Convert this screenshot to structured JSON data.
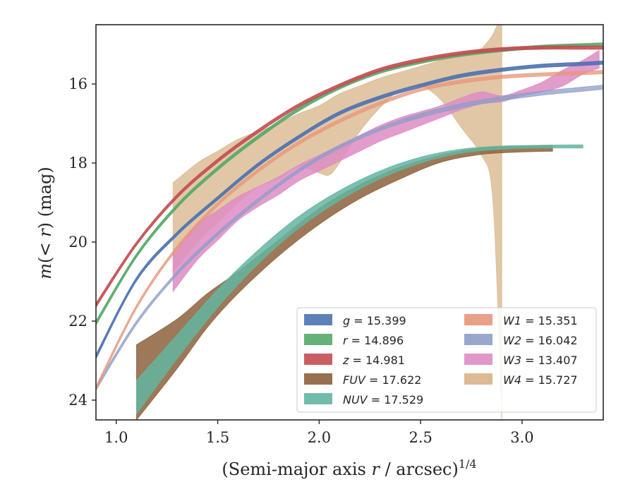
{
  "chart_data": {
    "type": "area",
    "xlabel": "(Semi-major axis r / arcsec)^{1/4}",
    "ylabel": "m(<r) (mag)",
    "xlim": [
      0.9,
      3.4
    ],
    "ylim": [
      24.5,
      14.5
    ],
    "y_inverted": true,
    "grid": false,
    "legend_position": "lower-right",
    "x_ticks": [
      "1.0",
      "1.5",
      "2.0",
      "2.5",
      "3.0"
    ],
    "y_ticks": [
      "16",
      "18",
      "20",
      "22",
      "24"
    ],
    "series": [
      {
        "name": "g = 15.399",
        "color": "#4c72b0",
        "type": "line",
        "upper": [
          [
            0.9,
            22.85
          ],
          [
            1.1,
            20.9
          ],
          [
            1.3,
            19.75
          ],
          [
            1.5,
            18.85
          ],
          [
            1.7,
            18.0
          ],
          [
            1.9,
            17.3
          ],
          [
            2.1,
            16.7
          ],
          [
            2.3,
            16.3
          ],
          [
            2.5,
            16.0
          ],
          [
            2.7,
            15.75
          ],
          [
            2.9,
            15.6
          ],
          [
            3.1,
            15.5
          ],
          [
            3.3,
            15.45
          ],
          [
            3.4,
            15.42
          ]
        ],
        "lower": [
          [
            0.9,
            22.95
          ],
          [
            1.1,
            20.98
          ],
          [
            1.3,
            19.83
          ],
          [
            1.5,
            18.93
          ],
          [
            1.7,
            18.08
          ],
          [
            1.9,
            17.38
          ],
          [
            2.1,
            16.78
          ],
          [
            2.3,
            16.38
          ],
          [
            2.5,
            16.08
          ],
          [
            2.7,
            15.83
          ],
          [
            2.9,
            15.68
          ],
          [
            3.1,
            15.58
          ],
          [
            3.3,
            15.53
          ],
          [
            3.4,
            15.5
          ]
        ]
      },
      {
        "name": "r = 14.896",
        "color": "#55a868",
        "type": "line",
        "upper": [
          [
            0.9,
            22.0
          ],
          [
            1.1,
            20.3
          ],
          [
            1.3,
            19.05
          ],
          [
            1.5,
            18.1
          ],
          [
            1.7,
            17.3
          ],
          [
            1.9,
            16.6
          ],
          [
            2.1,
            16.05
          ],
          [
            2.3,
            15.65
          ],
          [
            2.5,
            15.4
          ],
          [
            2.7,
            15.22
          ],
          [
            2.9,
            15.1
          ],
          [
            3.1,
            15.02
          ],
          [
            3.3,
            14.98
          ],
          [
            3.4,
            14.96
          ]
        ],
        "lower": [
          [
            0.9,
            22.1
          ],
          [
            1.1,
            20.38
          ],
          [
            1.3,
            19.13
          ],
          [
            1.5,
            18.18
          ],
          [
            1.7,
            17.38
          ],
          [
            1.9,
            16.68
          ],
          [
            2.1,
            16.13
          ],
          [
            2.3,
            15.73
          ],
          [
            2.5,
            15.48
          ],
          [
            2.7,
            15.3
          ],
          [
            2.9,
            15.18
          ],
          [
            3.1,
            15.1
          ],
          [
            3.3,
            15.06
          ],
          [
            3.4,
            15.04
          ]
        ]
      },
      {
        "name": "z = 14.981",
        "color": "#c44e52",
        "type": "line",
        "upper": [
          [
            0.9,
            21.55
          ],
          [
            1.1,
            20.0
          ],
          [
            1.3,
            18.8
          ],
          [
            1.5,
            17.9
          ],
          [
            1.7,
            17.15
          ],
          [
            1.9,
            16.5
          ],
          [
            2.1,
            16.0
          ],
          [
            2.3,
            15.6
          ],
          [
            2.5,
            15.35
          ],
          [
            2.7,
            15.18
          ],
          [
            2.9,
            15.08
          ],
          [
            3.1,
            15.04
          ],
          [
            3.3,
            15.04
          ],
          [
            3.4,
            15.04
          ]
        ],
        "lower": [
          [
            0.9,
            21.65
          ],
          [
            1.1,
            20.08
          ],
          [
            1.3,
            18.88
          ],
          [
            1.5,
            17.98
          ],
          [
            1.7,
            17.23
          ],
          [
            1.9,
            16.58
          ],
          [
            2.1,
            16.08
          ],
          [
            2.3,
            15.68
          ],
          [
            2.5,
            15.43
          ],
          [
            2.7,
            15.26
          ],
          [
            2.9,
            15.16
          ],
          [
            3.1,
            15.12
          ],
          [
            3.3,
            15.12
          ],
          [
            3.4,
            15.12
          ]
        ]
      },
      {
        "name": "FUV = 17.622",
        "color": "#8c613c",
        "type": "band",
        "upper": [
          [
            1.1,
            22.6
          ],
          [
            1.3,
            21.95
          ],
          [
            1.45,
            21.3
          ],
          [
            1.6,
            20.75
          ],
          [
            1.8,
            19.95
          ],
          [
            2.0,
            19.15
          ],
          [
            2.2,
            18.55
          ],
          [
            2.4,
            18.1
          ],
          [
            2.6,
            17.8
          ],
          [
            2.8,
            17.62
          ],
          [
            3.0,
            17.58
          ],
          [
            3.15,
            17.55
          ]
        ],
        "lower": [
          [
            1.1,
            24.5
          ],
          [
            1.3,
            23.2
          ],
          [
            1.45,
            22.15
          ],
          [
            1.6,
            21.3
          ],
          [
            1.8,
            20.35
          ],
          [
            2.0,
            19.55
          ],
          [
            2.2,
            18.9
          ],
          [
            2.4,
            18.4
          ],
          [
            2.6,
            17.98
          ],
          [
            2.8,
            17.78
          ],
          [
            3.0,
            17.72
          ],
          [
            3.15,
            17.7
          ]
        ]
      },
      {
        "name": "NUV = 17.529",
        "color": "#64b5a0",
        "type": "band",
        "upper": [
          [
            1.1,
            23.5
          ],
          [
            1.3,
            22.35
          ],
          [
            1.5,
            21.2
          ],
          [
            1.7,
            20.2
          ],
          [
            1.9,
            19.35
          ],
          [
            2.1,
            18.7
          ],
          [
            2.3,
            18.2
          ],
          [
            2.5,
            17.85
          ],
          [
            2.7,
            17.65
          ],
          [
            2.9,
            17.57
          ],
          [
            3.1,
            17.55
          ],
          [
            3.3,
            17.54
          ]
        ],
        "lower": [
          [
            1.1,
            24.35
          ],
          [
            1.3,
            22.95
          ],
          [
            1.5,
            21.65
          ],
          [
            1.7,
            20.55
          ],
          [
            1.9,
            19.65
          ],
          [
            2.1,
            18.95
          ],
          [
            2.3,
            18.4
          ],
          [
            2.5,
            18.0
          ],
          [
            2.7,
            17.75
          ],
          [
            2.9,
            17.65
          ],
          [
            3.1,
            17.62
          ],
          [
            3.3,
            17.62
          ]
        ]
      },
      {
        "name": "W1 = 15.351",
        "color": "#e8967a",
        "type": "line",
        "upper": [
          [
            0.9,
            23.65
          ],
          [
            1.1,
            21.6
          ],
          [
            1.3,
            20.1
          ],
          [
            1.5,
            19.0
          ],
          [
            1.7,
            18.15
          ],
          [
            1.9,
            17.45
          ],
          [
            2.1,
            16.9
          ],
          [
            2.3,
            16.45
          ],
          [
            2.5,
            16.1
          ],
          [
            2.7,
            15.9
          ],
          [
            2.9,
            15.78
          ],
          [
            3.1,
            15.72
          ],
          [
            3.3,
            15.68
          ],
          [
            3.4,
            15.66
          ]
        ],
        "lower": [
          [
            0.9,
            23.75
          ],
          [
            1.1,
            21.68
          ],
          [
            1.3,
            20.18
          ],
          [
            1.5,
            19.08
          ],
          [
            1.7,
            18.23
          ],
          [
            1.9,
            17.53
          ],
          [
            2.1,
            16.98
          ],
          [
            2.3,
            16.53
          ],
          [
            2.5,
            16.18
          ],
          [
            2.7,
            15.98
          ],
          [
            2.9,
            15.86
          ],
          [
            3.1,
            15.8
          ],
          [
            3.3,
            15.76
          ],
          [
            3.4,
            15.74
          ]
        ]
      },
      {
        "name": "W2 = 16.042",
        "color": "#8e9dc8",
        "type": "line",
        "upper": [
          [
            0.9,
            23.65
          ],
          [
            1.1,
            22.0
          ],
          [
            1.3,
            20.75
          ],
          [
            1.5,
            19.75
          ],
          [
            1.7,
            18.9
          ],
          [
            1.9,
            18.15
          ],
          [
            2.1,
            17.55
          ],
          [
            2.3,
            17.1
          ],
          [
            2.5,
            16.75
          ],
          [
            2.7,
            16.5
          ],
          [
            2.9,
            16.32
          ],
          [
            3.1,
            16.18
          ],
          [
            3.3,
            16.08
          ],
          [
            3.4,
            16.03
          ]
        ],
        "lower": [
          [
            0.9,
            23.75
          ],
          [
            1.1,
            22.08
          ],
          [
            1.3,
            20.83
          ],
          [
            1.5,
            19.83
          ],
          [
            1.7,
            18.98
          ],
          [
            1.9,
            18.23
          ],
          [
            2.1,
            17.63
          ],
          [
            2.3,
            17.18
          ],
          [
            2.5,
            16.85
          ],
          [
            2.7,
            16.6
          ],
          [
            2.9,
            16.42
          ],
          [
            3.1,
            16.28
          ],
          [
            3.3,
            16.18
          ],
          [
            3.4,
            16.13
          ]
        ]
      },
      {
        "name": "W3 = 13.407",
        "color": "#dd8cc3",
        "type": "band",
        "upper": [
          [
            1.28,
            20.3
          ],
          [
            1.4,
            19.55
          ],
          [
            1.5,
            19.2
          ],
          [
            1.6,
            18.85
          ],
          [
            1.7,
            18.6
          ],
          [
            1.8,
            18.35
          ],
          [
            1.9,
            18.05
          ],
          [
            2.0,
            17.8
          ],
          [
            2.1,
            17.55
          ],
          [
            2.2,
            17.3
          ],
          [
            2.3,
            17.05
          ],
          [
            2.4,
            16.85
          ],
          [
            2.5,
            16.7
          ],
          [
            2.6,
            16.55
          ],
          [
            2.7,
            16.35
          ],
          [
            2.8,
            16.2
          ],
          [
            2.9,
            16.3
          ],
          [
            3.0,
            16.15
          ],
          [
            3.1,
            15.95
          ],
          [
            3.2,
            15.65
          ],
          [
            3.3,
            15.4
          ],
          [
            3.38,
            15.15
          ]
        ],
        "lower": [
          [
            1.28,
            21.25
          ],
          [
            1.4,
            20.45
          ],
          [
            1.5,
            19.95
          ],
          [
            1.6,
            19.45
          ],
          [
            1.7,
            19.1
          ],
          [
            1.8,
            18.8
          ],
          [
            1.9,
            18.45
          ],
          [
            2.0,
            18.2
          ],
          [
            2.1,
            17.95
          ],
          [
            2.2,
            17.7
          ],
          [
            2.3,
            17.45
          ],
          [
            2.4,
            17.25
          ],
          [
            2.5,
            17.05
          ],
          [
            2.6,
            16.85
          ],
          [
            2.7,
            16.65
          ],
          [
            2.8,
            16.5
          ],
          [
            2.9,
            16.45
          ],
          [
            3.0,
            16.3
          ],
          [
            3.1,
            16.2
          ],
          [
            3.2,
            16.05
          ],
          [
            3.3,
            15.75
          ],
          [
            3.38,
            15.6
          ]
        ]
      },
      {
        "name": "W4 = 15.727",
        "color": "#d8b488",
        "type": "band",
        "upper": [
          [
            1.28,
            18.5
          ],
          [
            1.4,
            18.0
          ],
          [
            1.5,
            17.7
          ],
          [
            1.6,
            17.4
          ],
          [
            1.7,
            17.2
          ],
          [
            1.8,
            17.0
          ],
          [
            1.9,
            16.75
          ],
          [
            2.0,
            16.55
          ],
          [
            2.1,
            16.25
          ],
          [
            2.2,
            16.05
          ],
          [
            2.3,
            15.85
          ],
          [
            2.4,
            15.7
          ],
          [
            2.5,
            15.55
          ],
          [
            2.6,
            15.4
          ],
          [
            2.7,
            15.25
          ],
          [
            2.75,
            15.2
          ],
          [
            2.8,
            15.1
          ],
          [
            2.85,
            14.8
          ],
          [
            2.88,
            14.5
          ],
          [
            2.9,
            14.5
          ]
        ],
        "lower": [
          [
            1.28,
            20.75
          ],
          [
            1.4,
            20.0
          ],
          [
            1.5,
            19.5
          ],
          [
            1.6,
            19.0
          ],
          [
            1.7,
            18.6
          ],
          [
            1.8,
            18.4
          ],
          [
            1.9,
            18.1
          ],
          [
            2.0,
            18.25
          ],
          [
            2.05,
            18.3
          ],
          [
            2.1,
            18.0
          ],
          [
            2.2,
            17.2
          ],
          [
            2.3,
            16.6
          ],
          [
            2.4,
            16.15
          ],
          [
            2.5,
            16.05
          ],
          [
            2.6,
            16.4
          ],
          [
            2.7,
            17.1
          ],
          [
            2.8,
            17.8
          ],
          [
            2.85,
            18.6
          ],
          [
            2.88,
            21.5
          ],
          [
            2.9,
            24.5
          ]
        ]
      }
    ]
  },
  "legend": {
    "left": [
      {
        "label": "g = 15.399",
        "color": "#4c72b0"
      },
      {
        "label": "r = 14.896",
        "color": "#55a868"
      },
      {
        "label": "z = 14.981",
        "color": "#c44e52"
      },
      {
        "label": "FUV = 17.622",
        "color": "#8c613c"
      },
      {
        "label": "NUV = 17.529",
        "color": "#64b5a0"
      }
    ],
    "right": [
      {
        "label": "W1 = 15.351",
        "color": "#e8967a"
      },
      {
        "label": "W2 = 16.042",
        "color": "#8e9dc8"
      },
      {
        "label": "W3 = 13.407",
        "color": "#dd8cc3"
      },
      {
        "label": "W4 = 15.727",
        "color": "#d8b488"
      }
    ]
  }
}
